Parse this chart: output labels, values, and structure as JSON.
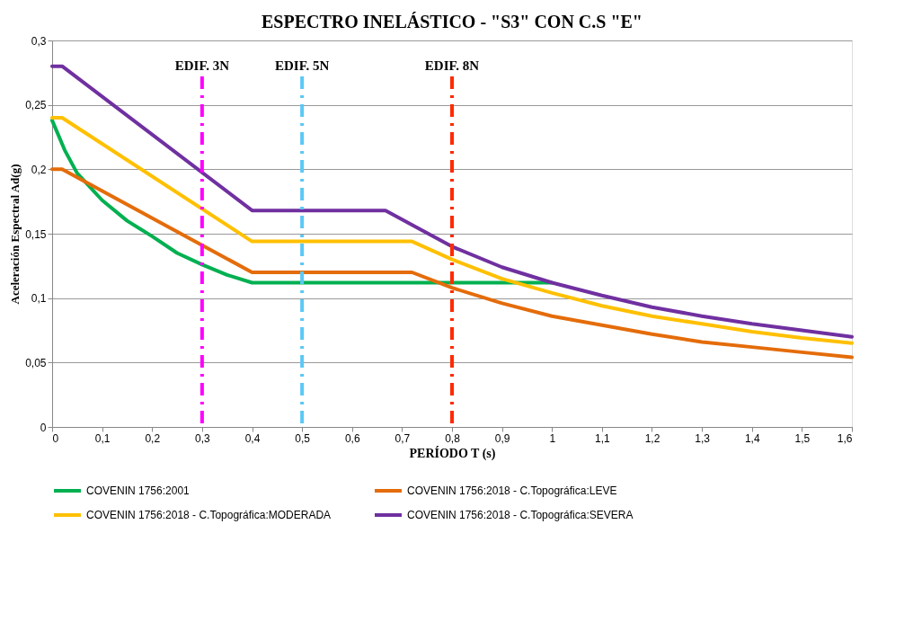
{
  "chart_data": {
    "type": "line",
    "title": "ESPECTRO INELÁSTICO - \"S3\" CON C.S \"E\"",
    "xlabel": "PERÍODO T (s)",
    "ylabel": "Aceleración Espectral Ad(g)",
    "xlim": [
      0,
      1.6
    ],
    "xticks": [
      0,
      {
        "value": 0.1,
        "label": "0,1"
      },
      {
        "value": 0.2,
        "label": "0,2"
      },
      {
        "value": 0.3,
        "label": "0,3"
      },
      {
        "value": 0.4,
        "label": "0,4"
      },
      {
        "value": 0.5,
        "label": "0,5"
      },
      {
        "value": 0.6,
        "label": "0,6"
      },
      {
        "value": 0.7,
        "label": "0,7"
      },
      {
        "value": 0.8,
        "label": "0,8"
      },
      {
        "value": 0.9,
        "label": "0,9"
      },
      1,
      {
        "value": 1.1,
        "label": "1,1"
      },
      {
        "value": 1.2,
        "label": "1,2"
      },
      {
        "value": 1.3,
        "label": "1,3"
      },
      {
        "value": 1.4,
        "label": "1,4"
      },
      {
        "value": 1.5,
        "label": "1,5"
      },
      {
        "value": 1.6,
        "label": "1,6"
      }
    ],
    "ylim": [
      0,
      0.3
    ],
    "yticks": [
      0,
      {
        "value": 0.05,
        "label": "0,05"
      },
      {
        "value": 0.1,
        "label": "0,1"
      },
      {
        "value": 0.15,
        "label": "0,15"
      },
      {
        "value": 0.2,
        "label": "0,2"
      },
      {
        "value": 0.25,
        "label": "0,25"
      },
      {
        "value": 0.3,
        "label": "0,3"
      }
    ],
    "grid": "y",
    "legend": "bottom",
    "marker": "none",
    "line_style": "solid",
    "series": [
      {
        "name": "COVENIN 1756:2001",
        "color": "#00b050",
        "x": [
          0,
          0.025,
          0.05,
          0.1,
          0.15,
          0.2,
          0.25,
          0.3,
          0.35,
          0.4,
          1.0
        ],
        "values": [
          0.238,
          0.215,
          0.197,
          0.176,
          0.16,
          0.148,
          0.135,
          0.126,
          0.118,
          0.112,
          0.112
        ]
      },
      {
        "name": "COVENIN 1756:2018 - C.Topográfica:LEVE",
        "color": "#e46c0a",
        "x": [
          0,
          0.02,
          0.4,
          0.7,
          0.72,
          0.8,
          0.9,
          1.0,
          1.1,
          1.2,
          1.3,
          1.4,
          1.5,
          1.6
        ],
        "values": [
          0.2,
          0.2,
          0.12,
          0.12,
          0.12,
          0.108,
          0.096,
          0.086,
          0.079,
          0.072,
          0.066,
          0.062,
          0.058,
          0.054
        ]
      },
      {
        "name": "COVENIN 1756:2018 - C.Topográfica:MODERADA",
        "color": "#ffc000",
        "x": [
          0,
          0.02,
          0.4,
          0.7,
          0.72,
          0.8,
          0.9,
          1.0,
          1.1,
          1.2,
          1.3,
          1.4,
          1.5,
          1.6
        ],
        "values": [
          0.24,
          0.24,
          0.144,
          0.144,
          0.144,
          0.13,
          0.115,
          0.104,
          0.094,
          0.086,
          0.08,
          0.074,
          0.069,
          0.065
        ]
      },
      {
        "name": "COVENIN 1756:2018 - C.Topográfica:SEVERA",
        "color": "#7030a0",
        "x": [
          0,
          0.02,
          0.4,
          0.667,
          0.8,
          0.9,
          1.0,
          1.1,
          1.2,
          1.3,
          1.4,
          1.5,
          1.6
        ],
        "values": [
          0.28,
          0.28,
          0.168,
          0.168,
          0.14,
          0.124,
          0.112,
          0.102,
          0.093,
          0.086,
          0.08,
          0.075,
          0.07
        ]
      }
    ],
    "ref_lines": [
      {
        "axis": "x",
        "value": 0.3,
        "label": "EDIF. 3N",
        "color": "#ff00ff",
        "line_style": "dashed"
      },
      {
        "axis": "x",
        "value": 0.5,
        "label": "EDIF. 5N",
        "color": "#5bc8f5",
        "line_style": "dashed"
      },
      {
        "axis": "x",
        "value": 0.8,
        "label": "EDIF. 8N",
        "color": "#ff2a00",
        "line_style": "dashed"
      }
    ]
  }
}
